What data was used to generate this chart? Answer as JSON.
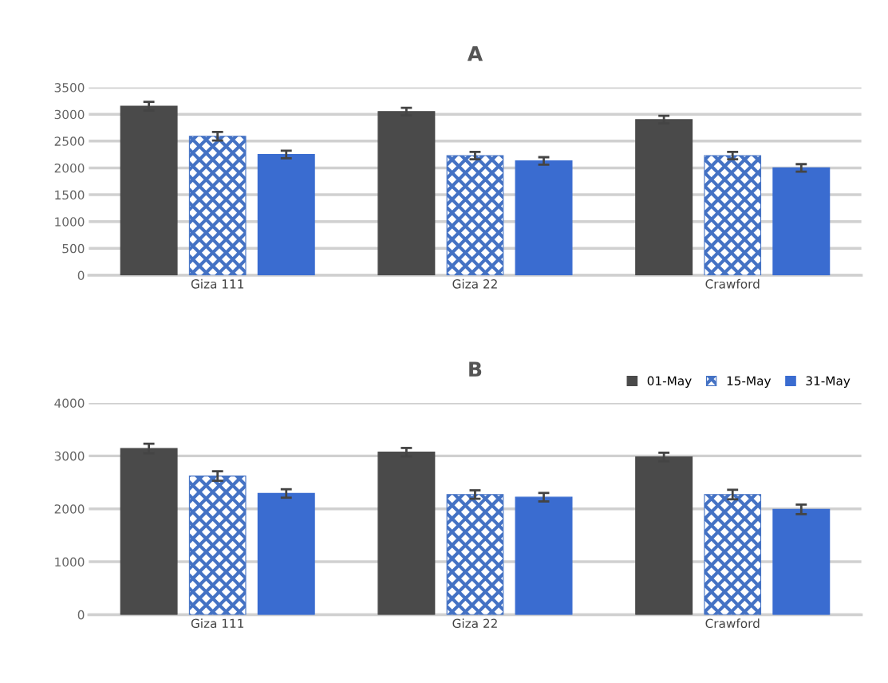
{
  "chart_data": [
    {
      "type": "bar",
      "title": "A",
      "categories": [
        "Giza 111",
        "Giza 22",
        "Crawford"
      ],
      "ylim": [
        0,
        3500
      ],
      "yticks": [
        0,
        500,
        1000,
        1500,
        2000,
        2500,
        3000,
        3500
      ],
      "grid": "y",
      "legend": false,
      "series": [
        {
          "color": "#4a4a4a",
          "values": [
            3150,
            3050,
            2900
          ],
          "errors": [
            80,
            70,
            70
          ]
        },
        {
          "color": "#4472c4",
          "values": [
            2590,
            2230,
            2230
          ],
          "errors": [
            80,
            70,
            70
          ]
        },
        {
          "color": "#3a6cd0",
          "values": [
            2250,
            2130,
            2000
          ],
          "errors": [
            70,
            70,
            70
          ]
        }
      ]
    },
    {
      "type": "bar",
      "title": "B",
      "categories": [
        "Giza 111",
        "Giza 22",
        "Crawford"
      ],
      "ylim": [
        0,
        4000
      ],
      "yticks": [
        0,
        1000,
        2000,
        3000,
        4000
      ],
      "grid": "y",
      "legend": "top right",
      "series": [
        {
          "name": "01-May",
          "color": "#4a4a4a",
          "values": [
            3140,
            3070,
            2980
          ],
          "errors": [
            90,
            80,
            80
          ]
        },
        {
          "name": "15-May",
          "color": "#4472c4",
          "values": [
            2620,
            2270,
            2270
          ],
          "errors": [
            90,
            80,
            90
          ]
        },
        {
          "name": "31-May",
          "color": "#3a6cd0",
          "values": [
            2290,
            2220,
            1990
          ],
          "errors": [
            80,
            80,
            90
          ]
        }
      ]
    }
  ]
}
